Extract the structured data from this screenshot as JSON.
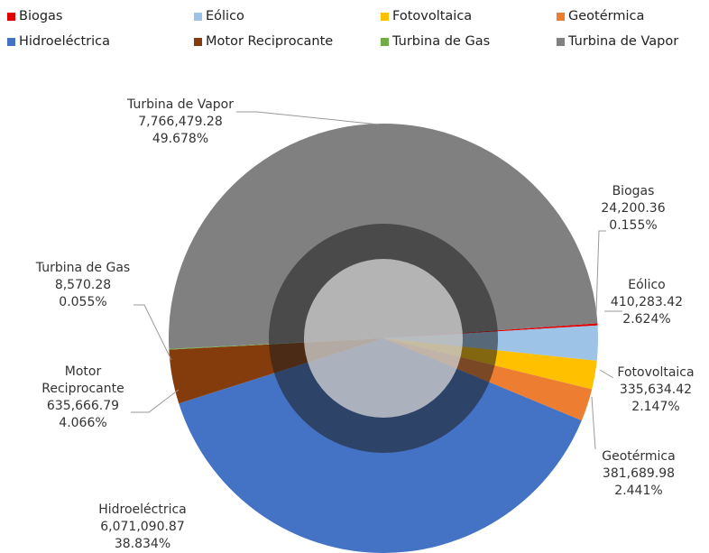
{
  "chart_data": {
    "type": "pie",
    "categories": [
      "Biogas",
      "Eólico",
      "Fotovoltaica",
      "Geotérmica",
      "Hidroeléctrica",
      "Motor Reciprocante",
      "Turbina de Gas",
      "Turbina de Vapor"
    ],
    "values": [
      24200.36,
      410283.42,
      335634.42,
      381689.98,
      6071090.87,
      635666.79,
      8570.28,
      7766479.28
    ],
    "value_labels": [
      "24,200.36",
      "410,283.42",
      "335,634.42",
      "381,689.98",
      "6,071,090.87",
      "635,666.79",
      "8,570.28",
      "7,766,479.28"
    ],
    "percent_labels": [
      "0.155%",
      "2.624%",
      "2.147%",
      "2.441%",
      "38.834%",
      "4.066%",
      "0.055%",
      "49.678%"
    ],
    "colors": [
      "#e00000",
      "#9dc3e6",
      "#ffc000",
      "#ed7d31",
      "#4472c4",
      "#843c0c",
      "#70ad47",
      "#808080"
    ],
    "legend": "top"
  }
}
